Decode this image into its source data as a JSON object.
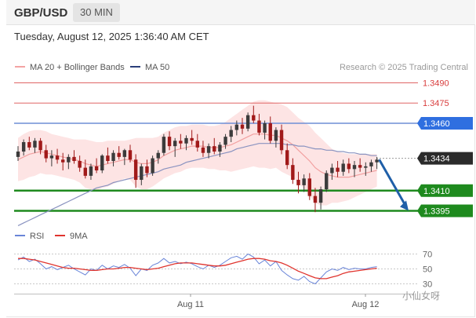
{
  "header": {
    "pair": "GBP/USD",
    "timeframe": "30 MIN"
  },
  "timestamp": "Tuesday, August 12, 2025 1:36:40 AM CET",
  "watermark": "小仙女呀",
  "colors": {
    "bollinger_fill": "#fde3e3",
    "ma20": "#f2a0a0",
    "ma50": "#8a93c0",
    "resistance": "#f08a8a",
    "blue_level": "#6f8fd6",
    "green_level": "#1e8a1e",
    "candle_up": "#3b3b3b",
    "candle_down": "#a11a1a",
    "arrow": "#1f5fa8",
    "rsi": "#6a85d8",
    "rsi_ma": "#e0342e"
  },
  "chart_data": [
    {
      "type": "candlestick",
      "title": "GBP/USD",
      "legend": [
        {
          "name": "MA 20 + Bollinger Bands",
          "color": "#f4a3a3"
        },
        {
          "name": "MA 50",
          "color": "#2b3f7a"
        }
      ],
      "credit": "Research © 2025 Trading Central",
      "x_ticks": [
        "Aug 11",
        "Aug 12"
      ],
      "ylim": [
        1.3385,
        1.35
      ],
      "levels": [
        {
          "value": 1.349,
          "label": "1.3490",
          "color": "#e06666",
          "style": "thin",
          "tag": "text"
        },
        {
          "value": 1.3475,
          "label": "1.3475",
          "color": "#e06666",
          "style": "thin",
          "tag": "text"
        },
        {
          "value": 1.346,
          "label": "1.3460",
          "color": "#6f8fd6",
          "style": "medium",
          "tag": "box-blue"
        },
        {
          "value": 1.3434,
          "label": "1.3434",
          "color": "#999999",
          "style": "dotted",
          "tag": "box-dark"
        },
        {
          "value": 1.341,
          "label": "1.3410",
          "color": "#1e8a1e",
          "style": "thick",
          "tag": "box-green"
        },
        {
          "value": 1.3395,
          "label": "1.3395",
          "color": "#1e8a1e",
          "style": "thick",
          "tag": "box-green"
        }
      ],
      "candles": [
        [
          1.3435,
          1.3443,
          1.3432,
          1.3439
        ],
        [
          1.3439,
          1.3448,
          1.3436,
          1.3446
        ],
        [
          1.3446,
          1.345,
          1.344,
          1.3442
        ],
        [
          1.3442,
          1.3449,
          1.3438,
          1.3447
        ],
        [
          1.3447,
          1.3449,
          1.3437,
          1.344
        ],
        [
          1.344,
          1.3444,
          1.3431,
          1.3434
        ],
        [
          1.3434,
          1.344,
          1.3428,
          1.3436
        ],
        [
          1.3436,
          1.3441,
          1.343,
          1.3433
        ],
        [
          1.3433,
          1.3438,
          1.3425,
          1.3431
        ],
        [
          1.3431,
          1.3437,
          1.3426,
          1.3435
        ],
        [
          1.3435,
          1.344,
          1.343,
          1.3432
        ],
        [
          1.3432,
          1.3436,
          1.3424,
          1.3427
        ],
        [
          1.3427,
          1.3433,
          1.3419,
          1.3421
        ],
        [
          1.3421,
          1.343,
          1.3418,
          1.3428
        ],
        [
          1.3428,
          1.3434,
          1.3423,
          1.3425
        ],
        [
          1.3425,
          1.3437,
          1.3423,
          1.3436
        ],
        [
          1.3436,
          1.3442,
          1.343,
          1.3432
        ],
        [
          1.3432,
          1.344,
          1.3428,
          1.3438
        ],
        [
          1.3438,
          1.3443,
          1.3433,
          1.3435
        ],
        [
          1.3435,
          1.3441,
          1.3429,
          1.344
        ],
        [
          1.344,
          1.3444,
          1.3431,
          1.3433
        ],
        [
          1.3433,
          1.3437,
          1.3412,
          1.3418
        ],
        [
          1.3418,
          1.343,
          1.3414,
          1.3428
        ],
        [
          1.3428,
          1.3433,
          1.342,
          1.3423
        ],
        [
          1.3423,
          1.3436,
          1.3421,
          1.3434
        ],
        [
          1.3434,
          1.344,
          1.343,
          1.3438
        ],
        [
          1.3438,
          1.3452,
          1.3436,
          1.345
        ],
        [
          1.345,
          1.3454,
          1.344,
          1.3443
        ],
        [
          1.3443,
          1.3449,
          1.3435,
          1.3447
        ],
        [
          1.3447,
          1.3452,
          1.3441,
          1.3445
        ],
        [
          1.3445,
          1.3451,
          1.344,
          1.3449
        ],
        [
          1.3449,
          1.3455,
          1.3444,
          1.3447
        ],
        [
          1.3447,
          1.3452,
          1.3439,
          1.3442
        ],
        [
          1.3442,
          1.3447,
          1.3435,
          1.3438
        ],
        [
          1.3438,
          1.3445,
          1.3434,
          1.3443
        ],
        [
          1.3443,
          1.3449,
          1.3437,
          1.3439
        ],
        [
          1.3439,
          1.3446,
          1.3435,
          1.3444
        ],
        [
          1.3444,
          1.3452,
          1.3441,
          1.345
        ],
        [
          1.345,
          1.3458,
          1.3446,
          1.3455
        ],
        [
          1.3455,
          1.3462,
          1.3451,
          1.3459
        ],
        [
          1.3459,
          1.3464,
          1.3452,
          1.3456
        ],
        [
          1.3456,
          1.3468,
          1.3454,
          1.3466
        ],
        [
          1.3466,
          1.3473,
          1.346,
          1.3462
        ],
        [
          1.3462,
          1.3467,
          1.3451,
          1.3453
        ],
        [
          1.3453,
          1.3462,
          1.3448,
          1.346
        ],
        [
          1.346,
          1.3465,
          1.3445,
          1.3447
        ],
        [
          1.3447,
          1.3457,
          1.3442,
          1.3455
        ],
        [
          1.3455,
          1.3459,
          1.3437,
          1.344
        ],
        [
          1.344,
          1.3445,
          1.3426,
          1.3429
        ],
        [
          1.3429,
          1.3434,
          1.3415,
          1.3418
        ],
        [
          1.3418,
          1.3424,
          1.3408,
          1.3414
        ],
        [
          1.3414,
          1.3422,
          1.3409,
          1.3419
        ],
        [
          1.3419,
          1.3423,
          1.3403,
          1.3406
        ],
        [
          1.3406,
          1.3412,
          1.3394,
          1.3401
        ],
        [
          1.3401,
          1.3413,
          1.3396,
          1.3411
        ],
        [
          1.3411,
          1.3425,
          1.3409,
          1.3423
        ],
        [
          1.3423,
          1.343,
          1.3418,
          1.3427
        ],
        [
          1.3427,
          1.3432,
          1.342,
          1.3424
        ],
        [
          1.3424,
          1.3433,
          1.3421,
          1.343
        ],
        [
          1.343,
          1.3434,
          1.3423,
          1.3426
        ],
        [
          1.3426,
          1.3432,
          1.342,
          1.3429
        ],
        [
          1.3429,
          1.3434,
          1.3424,
          1.3427
        ],
        [
          1.3427,
          1.3431,
          1.3421,
          1.3428
        ],
        [
          1.3428,
          1.3433,
          1.3424,
          1.3431
        ],
        [
          1.3431,
          1.3435,
          1.3426,
          1.3433
        ]
      ],
      "ma20": [
        1.3433,
        1.3435,
        1.3437,
        1.3438,
        1.3439,
        1.3438,
        1.3437,
        1.3436,
        1.3435,
        1.3434,
        1.3433,
        1.3432,
        1.343,
        1.3429,
        1.3428,
        1.3429,
        1.343,
        1.3431,
        1.3432,
        1.3433,
        1.3433,
        1.3431,
        1.343,
        1.343,
        1.3431,
        1.3433,
        1.3436,
        1.3438,
        1.344,
        1.3441,
        1.3442,
        1.3443,
        1.3443,
        1.3443,
        1.3442,
        1.3442,
        1.3442,
        1.3443,
        1.3444,
        1.3446,
        1.3448,
        1.345,
        1.3452,
        1.3452,
        1.3452,
        1.3451,
        1.3451,
        1.3449,
        1.3447,
        1.3444,
        1.344,
        1.3436,
        1.3432,
        1.3427,
        1.3424,
        1.3422,
        1.3421,
        1.342,
        1.342,
        1.342,
        1.3421,
        1.3422,
        1.3423,
        1.3424,
        1.3425
      ],
      "bb_upper": [
        1.3449,
        1.3452,
        1.3454,
        1.3455,
        1.3455,
        1.3454,
        1.3452,
        1.3451,
        1.345,
        1.3449,
        1.3448,
        1.3448,
        1.3448,
        1.3447,
        1.3446,
        1.3446,
        1.3447,
        1.3447,
        1.3447,
        1.3447,
        1.3448,
        1.3449,
        1.3449,
        1.3449,
        1.3449,
        1.345,
        1.3453,
        1.3455,
        1.3457,
        1.3458,
        1.3458,
        1.3459,
        1.3459,
        1.3459,
        1.3458,
        1.3458,
        1.3459,
        1.3461,
        1.3464,
        1.3467,
        1.347,
        1.3473,
        1.3476,
        1.3477,
        1.3477,
        1.3476,
        1.3475,
        1.3474,
        1.3472,
        1.3468,
        1.3464,
        1.3461,
        1.3458,
        1.3453,
        1.3449,
        1.3445,
        1.3441,
        1.3439,
        1.3438,
        1.3437,
        1.3437,
        1.3437,
        1.3437,
        1.3437,
        1.3437
      ],
      "bb_lower": [
        1.3417,
        1.3418,
        1.342,
        1.3421,
        1.3423,
        1.3422,
        1.3422,
        1.3421,
        1.342,
        1.3419,
        1.3418,
        1.3416,
        1.3412,
        1.3411,
        1.341,
        1.3412,
        1.3413,
        1.3415,
        1.3417,
        1.3419,
        1.3418,
        1.3413,
        1.3411,
        1.3411,
        1.3413,
        1.3416,
        1.3419,
        1.3421,
        1.3423,
        1.3424,
        1.3426,
        1.3427,
        1.3427,
        1.3427,
        1.3426,
        1.3426,
        1.3425,
        1.3425,
        1.3424,
        1.3425,
        1.3426,
        1.3427,
        1.3428,
        1.3427,
        1.3427,
        1.3426,
        1.3427,
        1.3424,
        1.3422,
        1.342,
        1.3416,
        1.3411,
        1.3406,
        1.3401,
        1.3399,
        1.3399,
        1.3401,
        1.3401,
        1.3402,
        1.3403,
        1.3405,
        1.3407,
        1.3409,
        1.3411,
        1.3413
      ],
      "ma50": [
        1.3384,
        1.3386,
        1.3388,
        1.339,
        1.3392,
        1.3394,
        1.3396,
        1.3398,
        1.34,
        1.3402,
        1.3404,
        1.3406,
        1.3408,
        1.341,
        1.3412,
        1.3413,
        1.3414,
        1.3416,
        1.3417,
        1.3418,
        1.3419,
        1.342,
        1.3421,
        1.3422,
        1.3423,
        1.3424,
        1.3426,
        1.3427,
        1.3428,
        1.3429,
        1.3431,
        1.3432,
        1.3433,
        1.3434,
        1.3435,
        1.3436,
        1.3437,
        1.3438,
        1.3439,
        1.3441,
        1.3442,
        1.3443,
        1.3444,
        1.3445,
        1.3445,
        1.3445,
        1.3445,
        1.3445,
        1.3444,
        1.3444,
        1.3443,
        1.3443,
        1.3442,
        1.3441,
        1.3441,
        1.344,
        1.344,
        1.3439,
        1.3439,
        1.3438,
        1.3438,
        1.3437,
        1.3437,
        1.3436,
        1.3436
      ],
      "projection": {
        "from": 1.3433,
        "to": 1.3398
      },
      "rsi_panel": {
        "legend": [
          {
            "name": "RSI",
            "color": "#6a85d8"
          },
          {
            "name": "9MA",
            "color": "#e0342e"
          }
        ],
        "ylim": [
          25,
          75
        ],
        "ticks": [
          "70",
          "50",
          "30"
        ],
        "rsi": [
          62,
          66,
          60,
          63,
          57,
          50,
          53,
          49,
          52,
          55,
          50,
          46,
          42,
          50,
          48,
          55,
          50,
          54,
          52,
          56,
          51,
          41,
          50,
          48,
          55,
          58,
          64,
          58,
          60,
          57,
          59,
          57,
          53,
          50,
          55,
          52,
          55,
          60,
          65,
          67,
          63,
          70,
          66,
          57,
          62,
          54,
          60,
          48,
          42,
          37,
          35,
          40,
          33,
          30,
          38,
          46,
          50,
          48,
          52,
          49,
          51,
          50,
          50,
          52,
          53
        ],
        "rsi_ma": [
          64,
          64,
          63,
          62,
          60,
          58,
          56,
          54,
          52,
          51,
          51,
          50,
          49,
          48,
          48,
          49,
          50,
          50,
          51,
          52,
          52,
          51,
          50,
          49,
          50,
          51,
          53,
          55,
          57,
          58,
          58,
          58,
          57,
          56,
          55,
          54,
          54,
          55,
          57,
          59,
          61,
          63,
          64,
          64,
          63,
          61,
          60,
          58,
          55,
          51,
          47,
          44,
          41,
          38,
          37,
          37,
          39,
          41,
          44,
          46,
          47,
          48,
          49,
          50,
          51
        ]
      }
    }
  ]
}
